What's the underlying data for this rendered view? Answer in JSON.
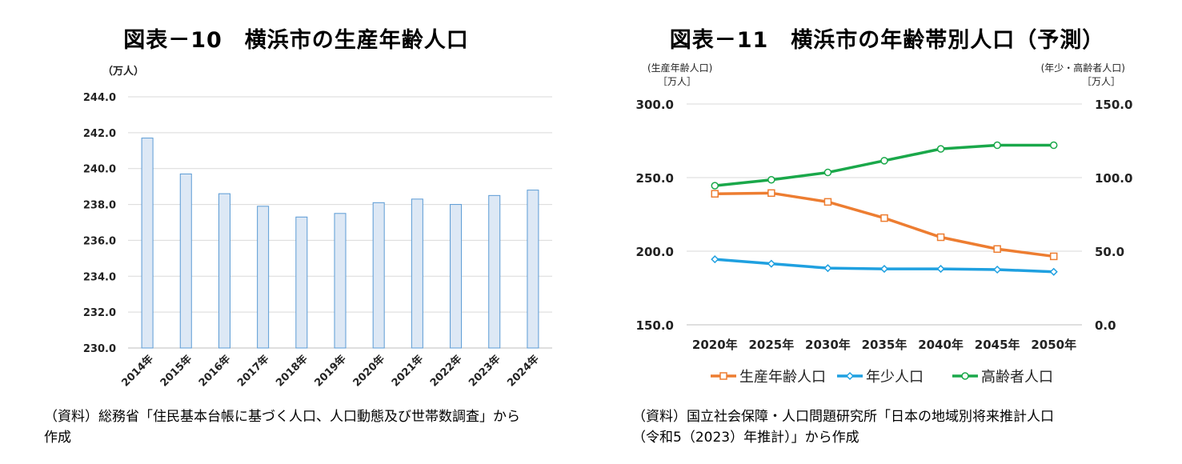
{
  "chart_data": [
    {
      "type": "bar",
      "title": "図表－10　横浜市の生産年齢人口",
      "unit_label": "（万人）",
      "categories": [
        "2014年",
        "2015年",
        "2016年",
        "2017年",
        "2018年",
        "2019年",
        "2020年",
        "2021年",
        "2022年",
        "2023年",
        "2024年"
      ],
      "values": [
        241.7,
        239.7,
        238.6,
        237.9,
        237.3,
        237.5,
        238.1,
        238.3,
        238.0,
        238.5,
        238.8
      ],
      "ylim": [
        230.0,
        244.0
      ],
      "yticks": [
        "230.0",
        "232.0",
        "234.0",
        "236.0",
        "238.0",
        "240.0",
        "242.0",
        "244.0"
      ],
      "grid": true,
      "bar_color": "#dde8f5",
      "bar_edge_color": "#5b9bd5",
      "source": "（資料）総務省「住民基本台帳に基づく人口、人口動態及び世帯数調査」から\n作成"
    },
    {
      "type": "line",
      "title": "図表－11　横浜市の年齢帯別人口（予測）",
      "left_axis_label": "(生産年齢人口)",
      "left_axis_unit": "［万人］",
      "right_axis_label": "(年少・高齢者人口)",
      "right_axis_unit": "［万人］",
      "categories": [
        "2020年",
        "2025年",
        "2030年",
        "2035年",
        "2040年",
        "2045年",
        "2050年"
      ],
      "ylim_left": [
        150.0,
        300.0
      ],
      "yticks_left": [
        "150.0",
        "200.0",
        "250.0",
        "300.0"
      ],
      "ylim_right": [
        0.0,
        150.0
      ],
      "yticks_right": [
        "0.0",
        "50.0",
        "100.0",
        "150.0"
      ],
      "series": [
        {
          "name": "生産年齢人口",
          "axis": "left",
          "color": "#ed7d31",
          "marker": "square",
          "values": [
            239.0,
            239.5,
            233.5,
            222.5,
            209.5,
            201.5,
            196.5
          ]
        },
        {
          "name": "年少人口",
          "axis": "right",
          "color": "#1fa0e0",
          "marker": "diamond",
          "values": [
            44.5,
            41.5,
            38.5,
            38.0,
            38.0,
            37.5,
            36.0
          ]
        },
        {
          "name": "高齢者人口",
          "axis": "right",
          "color": "#1aa84a",
          "marker": "circle",
          "values": [
            94.5,
            98.5,
            103.5,
            111.5,
            119.5,
            122.0,
            122.0
          ]
        }
      ],
      "legend": "bottom",
      "source": "（資料）国立社会保障・人口問題研究所「日本の地域別将来推計人口\n（令和5（2023）年推計）」から作成"
    }
  ]
}
